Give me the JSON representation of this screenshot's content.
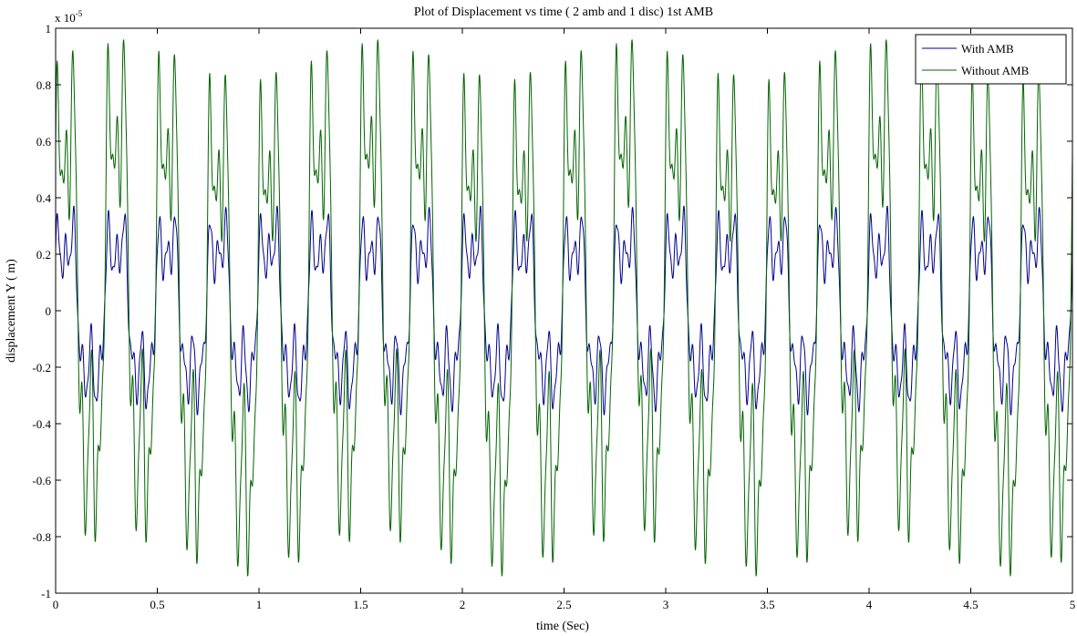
{
  "chart_data": {
    "type": "line",
    "title": "Plot of Displacement vs time ( 2 amb and 1 disc) 1st AMB",
    "xlabel": "time (Sec)",
    "ylabel": "displacement Y ( m)",
    "y_multiplier_text": "x 10",
    "y_multiplier_exponent": "-5",
    "xlim": [
      0,
      5
    ],
    "ylim": [
      -1,
      1
    ],
    "y_scale_factor": 1e-05,
    "xticks": [
      0,
      0.5,
      1,
      1.5,
      2,
      2.5,
      3,
      3.5,
      4,
      4.5,
      5
    ],
    "xtick_labels": [
      "0",
      "0.5",
      "1",
      "1.5",
      "2",
      "2.5",
      "3",
      "3.5",
      "4",
      "4.5",
      "5"
    ],
    "yticks": [
      -1,
      -0.8,
      -0.6,
      -0.4,
      -0.2,
      0,
      0.2,
      0.4,
      0.6,
      0.8,
      1
    ],
    "ytick_labels": [
      "-1",
      "-0.8",
      "-0.6",
      "-0.4",
      "-0.2",
      "0",
      "0.2",
      "0.4",
      "0.6",
      "0.8",
      "1"
    ],
    "grid": false,
    "legend_position": "top-right",
    "series": [
      {
        "name": "With AMB",
        "color": "#00008b",
        "peak_amplitude": 0.37,
        "approx_peak_period_sec": 0.25
      },
      {
        "name": "Without AMB",
        "color": "#006400",
        "peak_amplitude": 0.96,
        "approx_peak_period_sec": 0.25
      }
    ]
  }
}
